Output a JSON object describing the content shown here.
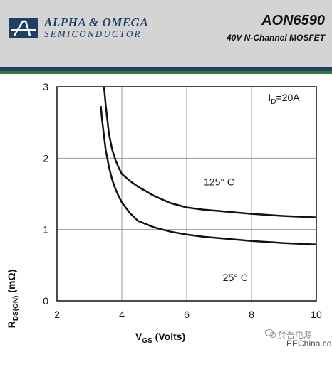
{
  "header": {
    "brand_name": "ALPHA & OMEGA",
    "brand_sub": "SEMICONDUCTOR",
    "part_number": "AON6590",
    "part_desc": "40V N-Channel MOSFET"
  },
  "colors": {
    "header_bg": "#d4d4d4",
    "brand_navy": "#1f3f66",
    "stripe_green": "#2e7d3b",
    "curve": "#111111",
    "grid": "#9a9a9a"
  },
  "watermark": {
    "cn_text": "於吾电源",
    "site": "EEChina.com",
    "icon": "wechat-icon"
  },
  "chart_data": {
    "type": "line",
    "xlabel_main": "V",
    "xlabel_sub": "GS",
    "xlabel_rest": " (Volts)",
    "ylabel_main": "R",
    "ylabel_sub": "DS(ON)",
    "ylabel_rest": " (mΩ)",
    "xlim": [
      2,
      10
    ],
    "ylim": [
      0,
      3
    ],
    "xticks": [
      "2",
      "4",
      "6",
      "8",
      "10"
    ],
    "yticks": [
      "0",
      "1",
      "2",
      "3"
    ],
    "grid": true,
    "annotation": {
      "main": "I",
      "sub": "D",
      "rest": "=20A",
      "x": 9.0,
      "y": 2.8
    },
    "series": [
      {
        "name": "125° C",
        "label_x": 7.0,
        "label_y": 1.62,
        "x": [
          3.45,
          3.5,
          3.6,
          3.7,
          3.8,
          3.9,
          4.0,
          4.25,
          4.5,
          5.0,
          5.5,
          6.0,
          6.5,
          7.0,
          8.0,
          9.0,
          10.0
        ],
        "y": [
          3.0,
          2.75,
          2.35,
          2.12,
          1.98,
          1.87,
          1.78,
          1.68,
          1.6,
          1.47,
          1.37,
          1.31,
          1.28,
          1.26,
          1.22,
          1.19,
          1.17
        ]
      },
      {
        "name": "25° C",
        "label_x": 7.5,
        "label_y": 0.28,
        "x": [
          3.35,
          3.4,
          3.5,
          3.6,
          3.7,
          3.8,
          3.9,
          4.0,
          4.25,
          4.5,
          5.0,
          5.5,
          6.0,
          6.5,
          7.0,
          8.0,
          9.0,
          10.0
        ],
        "y": [
          2.73,
          2.5,
          2.12,
          1.88,
          1.7,
          1.57,
          1.47,
          1.38,
          1.23,
          1.12,
          1.03,
          0.97,
          0.93,
          0.9,
          0.88,
          0.84,
          0.81,
          0.79
        ]
      }
    ]
  }
}
